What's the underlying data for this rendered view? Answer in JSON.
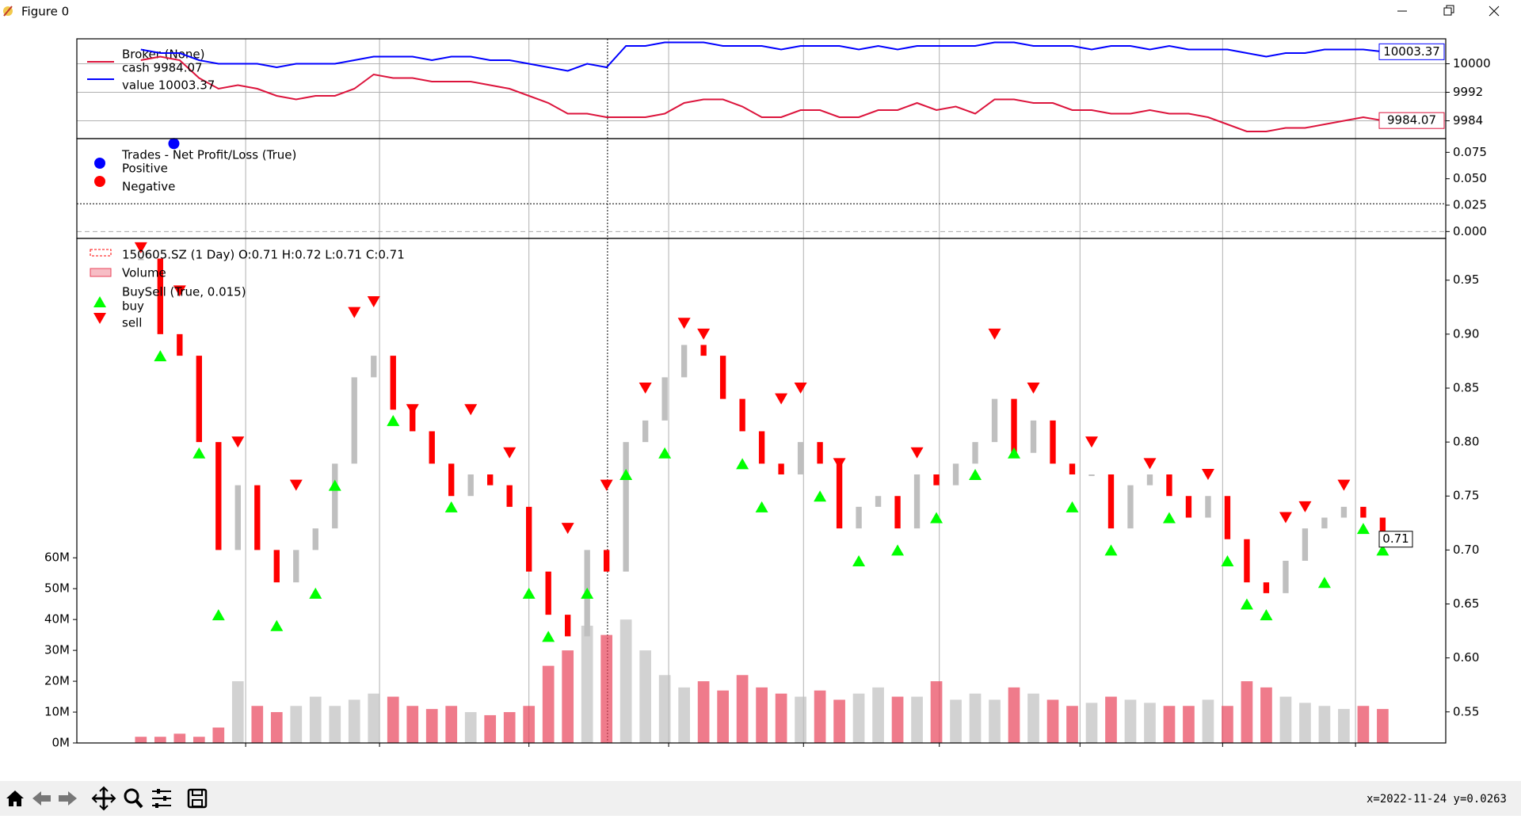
{
  "window_title": "Figure 0",
  "status": "x=2022-11-24 y=0.0263",
  "chart_data": [
    {
      "type": "line",
      "legend_title": "Broker (None)",
      "xlim": [
        -3.3,
        67.25
      ],
      "xticks": [
        5.4,
        12.3,
        20,
        27.2,
        34.15,
        41.15,
        48.4,
        55.75,
        62.6
      ],
      "ylim": [
        9979,
        10007
      ],
      "yticks": [
        9984,
        9992,
        10000
      ],
      "grid": true,
      "series": [
        {
          "name": "cash 9984.07",
          "color": "#dc143c",
          "values": [
            10001,
            10002,
            10001,
            9996,
            9993,
            9994,
            9993,
            9991,
            9990,
            9991,
            9991,
            9993,
            9997,
            9996,
            9996,
            9995,
            9995,
            9995,
            9994,
            9993,
            9991,
            9989,
            9986,
            9986,
            9985,
            9985,
            9985,
            9986,
            9989,
            9990,
            9990,
            9988,
            9985,
            9985,
            9987,
            9987,
            9985,
            9985,
            9987,
            9987,
            9989,
            9987,
            9988,
            9986,
            9990,
            9990,
            9989,
            9989,
            9987,
            9987,
            9986,
            9986,
            9987,
            9986,
            9986,
            9985,
            9983,
            9981,
            9981,
            9982,
            9982,
            9983,
            9984,
            9985,
            9984.07
          ]
        },
        {
          "name": "value 10003.37",
          "color": "#0000ff",
          "values": [
            10004,
            10003,
            10003,
            10001,
            10000,
            10000,
            10000,
            9999,
            10000,
            10000,
            10000,
            10001,
            10002,
            10002,
            10002,
            10001,
            10002,
            10002,
            10001,
            10001,
            10000,
            9999,
            9998,
            10000,
            9999,
            10005,
            10005,
            10006,
            10006,
            10006,
            10005,
            10005,
            10005,
            10004,
            10005,
            10005,
            10005,
            10004,
            10005,
            10004,
            10005,
            10005,
            10005,
            10005,
            10006,
            10006,
            10005,
            10005,
            10005,
            10004,
            10005,
            10005,
            10004,
            10005,
            10004,
            10004,
            10004,
            10003,
            10002,
            10003,
            10003,
            10004,
            10004,
            10004,
            10003.37
          ]
        }
      ]
    },
    {
      "type": "scatter",
      "title": "Trades - Net Profit/Loss (True)",
      "xlim": [
        -3.3,
        67.25
      ],
      "xticks": [
        5.4,
        12.3,
        20,
        27.2,
        34.15,
        41.15,
        48.4,
        55.75,
        62.6
      ],
      "ylim": [
        -0.0065,
        0.088
      ],
      "yticks": [
        {
          "value": 0,
          "label": "0.000"
        },
        0.025,
        {
          "value": 0.05,
          "label": "0.050"
        },
        0.075
      ],
      "crosshair": {
        "x": 24.05,
        "y": 0.0263
      },
      "series": [
        {
          "name": "Positive",
          "color": "#0000ff",
          "x": [
            1.7
          ],
          "values": [
            0.0833
          ]
        },
        {
          "name": "Negative",
          "color": "#ff0000",
          "x": [],
          "values": []
        }
      ]
    },
    {
      "type": "candlestick",
      "subtitle": "BuySell (True, 0.015)",
      "alt_color": "#bfbfbf",
      "xlim": [
        -3.3,
        67.25
      ],
      "xticks": [
        5.4,
        12.3,
        20,
        27.2,
        34.15,
        41.15,
        48.4,
        55.75,
        62.6
      ],
      "ylim": [
        0.5212,
        0.9887
      ],
      "yticks": [
        0.55,
        {
          "value": 0.6,
          "label": "0.60"
        },
        0.65,
        {
          "value": 0.7,
          "label": "0.70"
        },
        0.75,
        {
          "value": 0.8,
          "label": "0.80"
        },
        0.85,
        {
          "value": 0.9,
          "label": "0.90"
        },
        0.95
      ],
      "y2lim": [
        0,
        163500000
      ],
      "y2ticks": [
        {
          "value": 0,
          "label": "0M"
        },
        {
          "value": 10000000,
          "label": "10M"
        },
        {
          "value": 20000000,
          "label": "20M"
        },
        {
          "value": 30000000,
          "label": "30M"
        },
        {
          "value": 40000000,
          "label": "40M"
        },
        {
          "value": 50000000,
          "label": "50M"
        },
        {
          "value": 60000000,
          "label": "60M"
        }
      ],
      "series": [
        {
          "name": "150605.SZ (1 Day) O:0.71 H:0.72 L:0.71 C:0.71",
          "color": "#ff0000",
          "values": [
            0.97,
            0.9,
            0.88,
            0.8,
            0.7,
            0.76,
            0.7,
            0.67,
            0.7,
            0.72,
            0.78,
            0.86,
            0.88,
            0.83,
            0.81,
            0.78,
            0.75,
            0.77,
            0.76,
            0.74,
            0.68,
            0.64,
            0.62,
            0.7,
            0.68,
            0.8,
            0.82,
            0.86,
            0.89,
            0.88,
            0.84,
            0.81,
            0.78,
            0.77,
            0.8,
            0.78,
            0.72,
            0.74,
            0.75,
            0.72,
            0.77,
            0.76,
            0.78,
            0.8,
            0.84,
            0.79,
            0.82,
            0.78,
            0.77,
            0.77,
            0.72,
            0.76,
            0.77,
            0.75,
            0.73,
            0.75,
            0.71,
            0.67,
            0.66,
            0.69,
            0.72,
            0.73,
            0.74,
            0.73,
            0.71
          ]
        },
        {
          "name": "Volume",
          "color": "#e8435a",
          "axis": "y2",
          "values": [
            2000000,
            2000000,
            3000000,
            2000000,
            5000000,
            20000000,
            12000000,
            10000000,
            12000000,
            15000000,
            12000000,
            14000000,
            16000000,
            15000000,
            12000000,
            11000000,
            12000000,
            10000000,
            9000000,
            10000000,
            12000000,
            25000000,
            30000000,
            38000000,
            35000000,
            40000000,
            30000000,
            22000000,
            18000000,
            20000000,
            17000000,
            22000000,
            18000000,
            16000000,
            15000000,
            17000000,
            14000000,
            16000000,
            18000000,
            15000000,
            15000000,
            20000000,
            14000000,
            16000000,
            14000000,
            18000000,
            16000000,
            14000000,
            12000000,
            13000000,
            15000000,
            14000000,
            13000000,
            12000000,
            12000000,
            14000000,
            12000000,
            20000000,
            18000000,
            15000000,
            13000000,
            12000000,
            11000000,
            12000000,
            11000000
          ]
        },
        {
          "name": "buy",
          "color": "#00ff00",
          "marker": "up",
          "values": [
            null,
            0.88,
            null,
            0.79,
            0.64,
            null,
            null,
            0.63,
            null,
            0.66,
            0.76,
            null,
            null,
            0.82,
            null,
            null,
            0.74,
            null,
            null,
            null,
            0.66,
            0.62,
            null,
            0.66,
            null,
            0.77,
            null,
            0.79,
            null,
            null,
            null,
            0.78,
            0.74,
            null,
            null,
            0.75,
            null,
            0.69,
            null,
            0.7,
            null,
            0.73,
            null,
            0.77,
            null,
            0.79,
            null,
            null,
            0.74,
            null,
            0.7,
            null,
            null,
            0.73,
            null,
            null,
            0.69,
            0.65,
            0.64,
            null,
            null,
            0.67,
            null,
            0.72,
            0.7
          ]
        },
        {
          "name": "sell",
          "color": "#ff0000",
          "marker": "down",
          "values": [
            0.98,
            null,
            0.94,
            null,
            null,
            0.8,
            null,
            null,
            0.76,
            null,
            null,
            0.92,
            0.93,
            null,
            0.83,
            null,
            null,
            0.83,
            null,
            0.79,
            null,
            null,
            0.72,
            null,
            0.76,
            null,
            0.85,
            null,
            0.91,
            0.9,
            null,
            null,
            null,
            0.84,
            0.85,
            null,
            0.78,
            null,
            null,
            null,
            0.79,
            null,
            null,
            null,
            0.9,
            null,
            0.85,
            null,
            null,
            0.8,
            null,
            null,
            0.78,
            null,
            null,
            0.77,
            null,
            null,
            null,
            0.73,
            0.74,
            null,
            0.76,
            null,
            null
          ]
        }
      ]
    }
  ]
}
